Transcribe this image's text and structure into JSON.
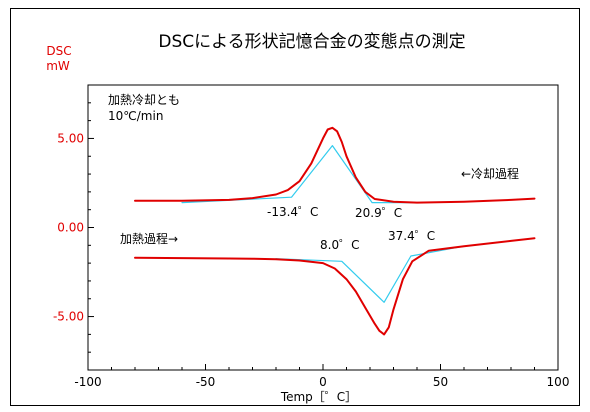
{
  "chart_data": {
    "type": "line",
    "title": "DSCによる形状記憶合金の変態点の測定",
    "ylabel_line1": "DSC",
    "ylabel_line2": "mW",
    "xlabel": "Temp［゜C］",
    "xlim": [
      -100,
      100
    ],
    "ylim": [
      -8,
      8
    ],
    "x_ticks": [
      -100,
      -50,
      0,
      50,
      100
    ],
    "x_tick_labels": [
      "-100",
      "-50",
      "0",
      "50",
      "100"
    ],
    "y_ticks": [
      5,
      0,
      -5
    ],
    "y_tick_labels": [
      "5.00",
      "0.00",
      "-5.00"
    ],
    "grid": false,
    "colors": {
      "curve": "#e00000",
      "tangent": "#33ccee",
      "axis_text": "#e00000"
    },
    "annotations": {
      "condition_line1": "加熱冷却とも",
      "condition_line2": "10℃/min",
      "cooling_label": "←冷却過程",
      "heating_label": "加熱過程→",
      "t_cool_low": "-13.4゜C",
      "t_cool_high": "20.9゜C",
      "t_heat_low": "8.0゜C",
      "t_heat_high": "37.4゜C"
    },
    "series": [
      {
        "x": [
          -80,
          -60,
          -40,
          -30,
          -20,
          -15,
          -10,
          -5,
          0,
          2,
          4,
          6,
          8,
          10,
          14,
          18,
          22,
          30,
          40,
          60,
          80,
          90
        ],
        "y": [
          1.5,
          1.5,
          1.55,
          1.65,
          1.85,
          2.1,
          2.6,
          3.6,
          5.0,
          5.5,
          5.6,
          5.4,
          4.8,
          4.0,
          2.8,
          2.0,
          1.6,
          1.45,
          1.4,
          1.45,
          1.55,
          1.62
        ]
      },
      {
        "x": [
          -80,
          -60,
          -40,
          -30,
          -20,
          -10,
          0,
          5,
          10,
          14,
          18,
          22,
          24,
          26,
          28,
          30,
          34,
          38,
          45,
          60,
          80,
          90
        ],
        "y": [
          -1.7,
          -1.72,
          -1.74,
          -1.75,
          -1.78,
          -1.85,
          -2.0,
          -2.3,
          -2.9,
          -3.6,
          -4.5,
          -5.4,
          -5.8,
          -6.0,
          -5.6,
          -4.6,
          -2.9,
          -1.9,
          -1.3,
          -1.05,
          -0.75,
          -0.6
        ]
      },
      {
        "x": [
          -60,
          -13.4,
          4,
          20.9,
          40
        ],
        "y": [
          1.4,
          1.7,
          4.6,
          1.4,
          1.4
        ]
      },
      {
        "x": [
          -20,
          8.0,
          26,
          37.4,
          60
        ],
        "y": [
          -1.75,
          -1.9,
          -4.2,
          -1.6,
          -1.05
        ]
      }
    ]
  }
}
